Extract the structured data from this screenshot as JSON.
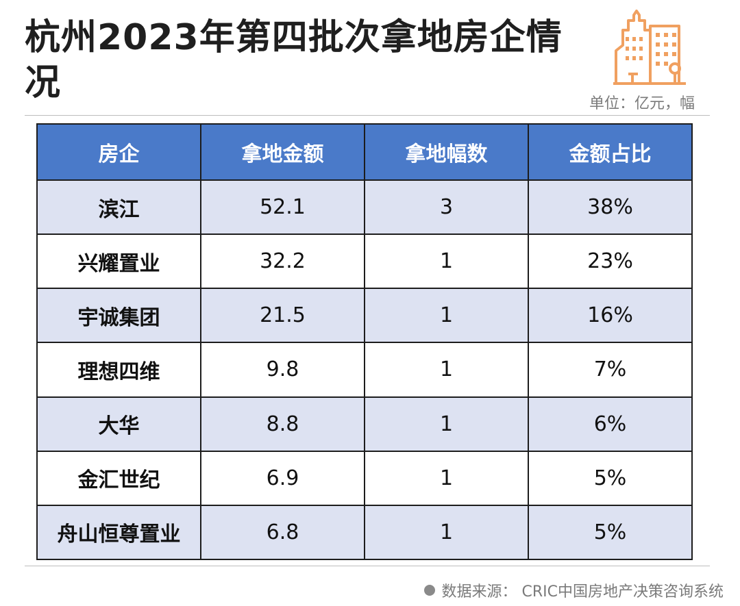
{
  "title": "杭州2023年第四批次拿地房企情况",
  "unit_note": "单位：亿元，幅",
  "source_note": "数据来源：  CRIC中国房地产决策咨询系统",
  "colors": {
    "header_bg": "#4a7ac9",
    "row_shade": "#dde2f2",
    "icon_orange": "#f0a060"
  },
  "icon": "building-icon",
  "chart_data": {
    "type": "table",
    "columns": [
      "房企",
      "拿地金额",
      "拿地幅数",
      "金额占比"
    ],
    "rows": [
      [
        "滨江",
        "52.1",
        "3",
        "38%"
      ],
      [
        "兴耀置业",
        "32.2",
        "1",
        "23%"
      ],
      [
        "宇诚集团",
        "21.5",
        "1",
        "16%"
      ],
      [
        "理想四维",
        "9.8",
        "1",
        "7%"
      ],
      [
        "大华",
        "8.8",
        "1",
        "6%"
      ],
      [
        "金汇世纪",
        "6.9",
        "1",
        "5%"
      ],
      [
        "舟山恒尊置业",
        "6.8",
        "1",
        "5%"
      ]
    ]
  }
}
